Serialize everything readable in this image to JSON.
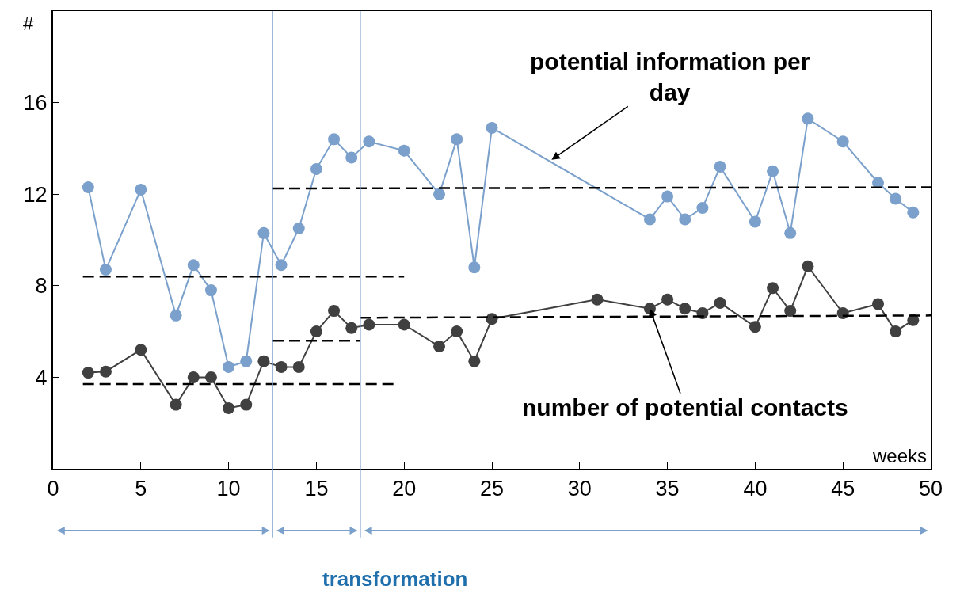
{
  "chart_data": {
    "type": "line",
    "xlabel": "weeks",
    "ylabel": "#",
    "xlim": [
      0,
      50
    ],
    "xticks": [
      0,
      5,
      10,
      15,
      20,
      25,
      30,
      35,
      40,
      45,
      50
    ],
    "ylim": [
      0,
      20
    ],
    "yticks": [
      4,
      8,
      12,
      16
    ],
    "marker": "circle",
    "series": [
      {
        "color": "#7aa0cb",
        "x": [
          2,
          3,
          5,
          7,
          8,
          9,
          10,
          11,
          12,
          13,
          14,
          15,
          16,
          17,
          18,
          20,
          22,
          23,
          24,
          25,
          34,
          35,
          36,
          37,
          38,
          40,
          41,
          42,
          43,
          45,
          47,
          48,
          49
        ],
        "values": [
          12.3,
          8.7,
          12.2,
          6.7,
          8.9,
          7.8,
          4.45,
          4.7,
          10.3,
          8.9,
          10.5,
          13.1,
          14.4,
          13.6,
          14.3,
          13.9,
          12.0,
          14.4,
          8.8,
          14.9,
          10.9,
          11.9,
          10.9,
          11.4,
          13.2,
          10.8,
          13.0,
          10.3,
          15.3,
          14.3,
          12.5,
          11.8,
          11.2
        ]
      },
      {
        "color": "#404040",
        "x": [
          2,
          3,
          5,
          7,
          8,
          9,
          10,
          11,
          12,
          13,
          14,
          15,
          16,
          17,
          18,
          20,
          22,
          23,
          24,
          25,
          31,
          34,
          35,
          36,
          37,
          38,
          40,
          41,
          42,
          43,
          45,
          47,
          48,
          49
        ],
        "values": [
          4.2,
          4.25,
          5.2,
          2.8,
          4.0,
          4.0,
          2.65,
          2.8,
          4.7,
          4.45,
          4.45,
          6.0,
          6.9,
          6.15,
          6.3,
          6.3,
          5.35,
          6.0,
          4.7,
          6.55,
          7.4,
          7.0,
          7.4,
          7.0,
          6.8,
          7.25,
          6.2,
          7.9,
          6.9,
          8.85,
          6.8,
          7.2,
          6.0,
          6.5
        ]
      },
      {
        "type": "line",
        "marker": "none",
        "line_style": "dashed",
        "color": "#000000",
        "x": [
          1.7,
          20
        ],
        "values": [
          8.4,
          8.4
        ]
      },
      {
        "type": "line",
        "marker": "none",
        "line_style": "dashed",
        "color": "#000000",
        "x": [
          12.5,
          50
        ],
        "values": [
          12.25,
          12.3
        ]
      },
      {
        "type": "line",
        "marker": "none",
        "line_style": "dashed",
        "color": "#000000",
        "x": [
          1.7,
          19.5
        ],
        "values": [
          3.7,
          3.7
        ]
      },
      {
        "type": "line",
        "marker": "none",
        "line_style": "dashed",
        "color": "#000000",
        "x": [
          12.5,
          17.5
        ],
        "values": [
          5.6,
          5.6
        ]
      },
      {
        "type": "line",
        "marker": "none",
        "line_style": "dashed",
        "color": "#000000",
        "x": [
          17.5,
          50
        ],
        "values": [
          6.6,
          6.7
        ]
      }
    ],
    "ref_lines": [
      {
        "axis": "x",
        "value": 12.5,
        "color": "#7aa0cb"
      },
      {
        "axis": "x",
        "value": 17.5,
        "color": "#7aa0cb"
      }
    ],
    "annotations": [
      {
        "text": "potential information per day",
        "x": 28.4,
        "y": 13.5
      },
      {
        "text": "number of potential contacts",
        "x": 34,
        "y": 7.0
      },
      "transformation"
    ]
  }
}
